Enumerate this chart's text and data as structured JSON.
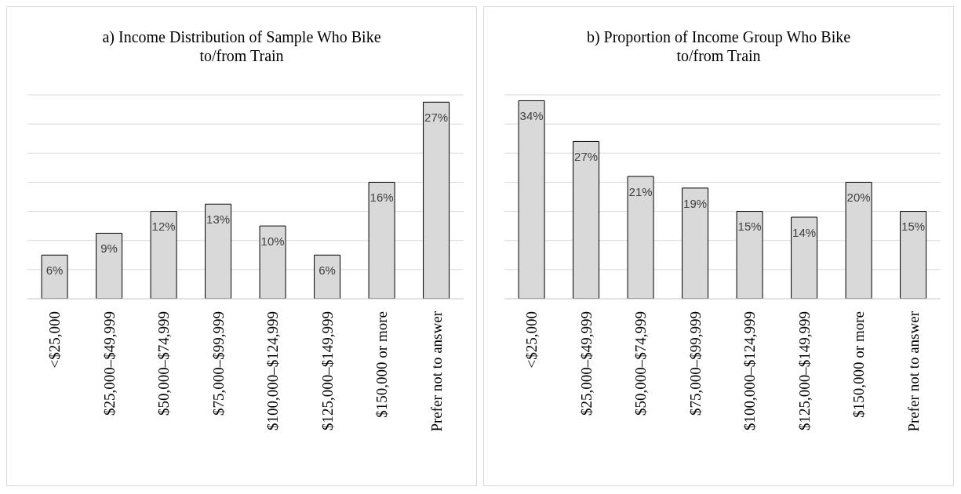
{
  "chart_data": [
    {
      "type": "bar",
      "title": "a) Income Distribution of Sample Who Bike to/from Train",
      "categories": [
        "<$25,000",
        "$25,000–$49,999",
        "$50,000–$74,999",
        "$75,000–$99,999",
        "$100,000–$124,999",
        "$125,000–$149,999",
        "$150,000 or more",
        "Prefer not to answer"
      ],
      "values": [
        6,
        9,
        12,
        13,
        10,
        6,
        16,
        27
      ],
      "value_labels": [
        "6%",
        "9%",
        "12%",
        "13%",
        "10%",
        "6%",
        "16%",
        "27%"
      ],
      "color": "#d9d9d9",
      "tick_labels": "x",
      "grid": "y",
      "legend": false
    },
    {
      "type": "bar",
      "title": "b) Proportion of Income Group Who Bike to/from Train",
      "categories": [
        "<$25,000",
        "$25,000–$49,999",
        "$50,000–$74,999",
        "$75,000–$99,999",
        "$100,000–$124,999",
        "$125,000–$149,999",
        "$150,000 or more",
        "Prefer not to answer"
      ],
      "values": [
        34,
        27,
        21,
        19,
        15,
        14,
        20,
        15
      ],
      "value_labels": [
        "34%",
        "27%",
        "21%",
        "19%",
        "15%",
        "14%",
        "20%",
        "15%"
      ],
      "color": "#d9d9d9",
      "tick_labels": "x",
      "grid": "y",
      "legend": false
    }
  ]
}
